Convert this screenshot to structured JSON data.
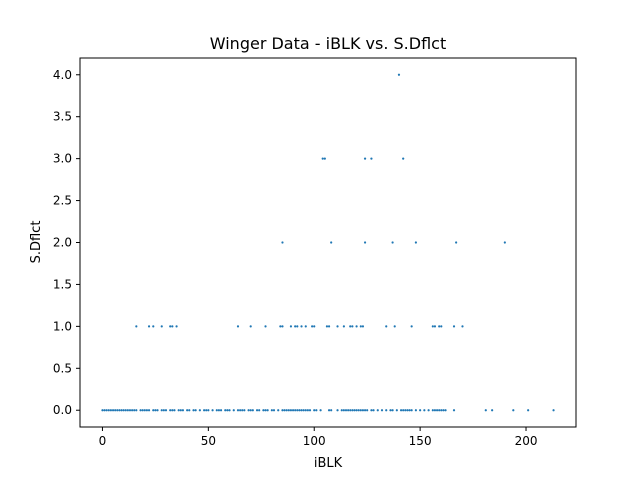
{
  "chart_data": {
    "type": "scatter",
    "title": "Winger Data - iBLK vs. S.Dflct",
    "xlabel": "iBLK",
    "ylabel": "S.Dflct",
    "xlim": [
      -10.6,
      223.6
    ],
    "ylim": [
      -0.2,
      4.2
    ],
    "xticks": [
      0,
      50,
      100,
      150,
      200
    ],
    "yticks": [
      0.0,
      0.5,
      1.0,
      1.5,
      2.0,
      2.5,
      3.0,
      3.5,
      4.0
    ],
    "xtick_labels": [
      "0",
      "50",
      "100",
      "150",
      "200"
    ],
    "ytick_labels": [
      "0.0",
      "0.5",
      "1.0",
      "1.5",
      "2.0",
      "2.5",
      "3.0",
      "3.5",
      "4.0"
    ],
    "grid": false,
    "marker_color": "#1f77b4",
    "points": [
      [
        0,
        0
      ],
      [
        1,
        0
      ],
      [
        2,
        0
      ],
      [
        3,
        0
      ],
      [
        4,
        0
      ],
      [
        5,
        0
      ],
      [
        6,
        0
      ],
      [
        7,
        0
      ],
      [
        8,
        0
      ],
      [
        9,
        0
      ],
      [
        10,
        0
      ],
      [
        11,
        0
      ],
      [
        12,
        0
      ],
      [
        13,
        0
      ],
      [
        14,
        0
      ],
      [
        15,
        0
      ],
      [
        16,
        0
      ],
      [
        18,
        0
      ],
      [
        19,
        0
      ],
      [
        20,
        0
      ],
      [
        21,
        0
      ],
      [
        22,
        0
      ],
      [
        24,
        0
      ],
      [
        25,
        0
      ],
      [
        26,
        0
      ],
      [
        28,
        0
      ],
      [
        29,
        0
      ],
      [
        30,
        0
      ],
      [
        32,
        0
      ],
      [
        33,
        0
      ],
      [
        34,
        0
      ],
      [
        36,
        0
      ],
      [
        37,
        0
      ],
      [
        38,
        0
      ],
      [
        40,
        0
      ],
      [
        41,
        0
      ],
      [
        43,
        0
      ],
      [
        44,
        0
      ],
      [
        46,
        0
      ],
      [
        48,
        0
      ],
      [
        49,
        0
      ],
      [
        50,
        0
      ],
      [
        52,
        0
      ],
      [
        54,
        0
      ],
      [
        55,
        0
      ],
      [
        56,
        0
      ],
      [
        58,
        0
      ],
      [
        59,
        0
      ],
      [
        60,
        0
      ],
      [
        62,
        0
      ],
      [
        64,
        0
      ],
      [
        65,
        0
      ],
      [
        66,
        0
      ],
      [
        67,
        0
      ],
      [
        69,
        0
      ],
      [
        70,
        0
      ],
      [
        71,
        0
      ],
      [
        73,
        0
      ],
      [
        74,
        0
      ],
      [
        76,
        0
      ],
      [
        77,
        0
      ],
      [
        78,
        0
      ],
      [
        80,
        0
      ],
      [
        81,
        0
      ],
      [
        83,
        0
      ],
      [
        85,
        0
      ],
      [
        86,
        0
      ],
      [
        87,
        0
      ],
      [
        88,
        0
      ],
      [
        89,
        0
      ],
      [
        90,
        0
      ],
      [
        91,
        0
      ],
      [
        92,
        0
      ],
      [
        93,
        0
      ],
      [
        94,
        0
      ],
      [
        95,
        0
      ],
      [
        96,
        0
      ],
      [
        97,
        0
      ],
      [
        98,
        0
      ],
      [
        100,
        0
      ],
      [
        101,
        0
      ],
      [
        103,
        0
      ],
      [
        107,
        0
      ],
      [
        108,
        0
      ],
      [
        111,
        0
      ],
      [
        113,
        0
      ],
      [
        114,
        0
      ],
      [
        115,
        0
      ],
      [
        116,
        0
      ],
      [
        117,
        0
      ],
      [
        118,
        0
      ],
      [
        119,
        0
      ],
      [
        120,
        0
      ],
      [
        121,
        0
      ],
      [
        122,
        0
      ],
      [
        123,
        0
      ],
      [
        124,
        0
      ],
      [
        125,
        0
      ],
      [
        127,
        0
      ],
      [
        128,
        0
      ],
      [
        130,
        0
      ],
      [
        132,
        0
      ],
      [
        134,
        0
      ],
      [
        136,
        0
      ],
      [
        137,
        0
      ],
      [
        139,
        0
      ],
      [
        141,
        0
      ],
      [
        142,
        0
      ],
      [
        143,
        0
      ],
      [
        144,
        0
      ],
      [
        145,
        0
      ],
      [
        146,
        0
      ],
      [
        148,
        0
      ],
      [
        150,
        0
      ],
      [
        152,
        0
      ],
      [
        154,
        0
      ],
      [
        156,
        0
      ],
      [
        157,
        0
      ],
      [
        158,
        0
      ],
      [
        159,
        0
      ],
      [
        160,
        0
      ],
      [
        161,
        0
      ],
      [
        162,
        0
      ],
      [
        166,
        0
      ],
      [
        181,
        0
      ],
      [
        184,
        0
      ],
      [
        194,
        0
      ],
      [
        201,
        0
      ],
      [
        213,
        0
      ],
      [
        16,
        1
      ],
      [
        22,
        1
      ],
      [
        24,
        1
      ],
      [
        28,
        1
      ],
      [
        32,
        1
      ],
      [
        33,
        1
      ],
      [
        35,
        1
      ],
      [
        64,
        1
      ],
      [
        70,
        1
      ],
      [
        77,
        1
      ],
      [
        84,
        1
      ],
      [
        85,
        1
      ],
      [
        89,
        1
      ],
      [
        91,
        1
      ],
      [
        92,
        1
      ],
      [
        94,
        1
      ],
      [
        96,
        1
      ],
      [
        99,
        1
      ],
      [
        100,
        1
      ],
      [
        106,
        1
      ],
      [
        107,
        1
      ],
      [
        111,
        1
      ],
      [
        114,
        1
      ],
      [
        117,
        1
      ],
      [
        118,
        1
      ],
      [
        120,
        1
      ],
      [
        122,
        1
      ],
      [
        123,
        1
      ],
      [
        134,
        1
      ],
      [
        138,
        1
      ],
      [
        146,
        1
      ],
      [
        156,
        1
      ],
      [
        157,
        1
      ],
      [
        159,
        1
      ],
      [
        160,
        1
      ],
      [
        166,
        1
      ],
      [
        170,
        1
      ],
      [
        85,
        2
      ],
      [
        108,
        2
      ],
      [
        124,
        2
      ],
      [
        137,
        2
      ],
      [
        148,
        2
      ],
      [
        167,
        2
      ],
      [
        190,
        2
      ],
      [
        104,
        3
      ],
      [
        105,
        3
      ],
      [
        124,
        3
      ],
      [
        127,
        3
      ],
      [
        142,
        3
      ],
      [
        140,
        4
      ]
    ]
  }
}
